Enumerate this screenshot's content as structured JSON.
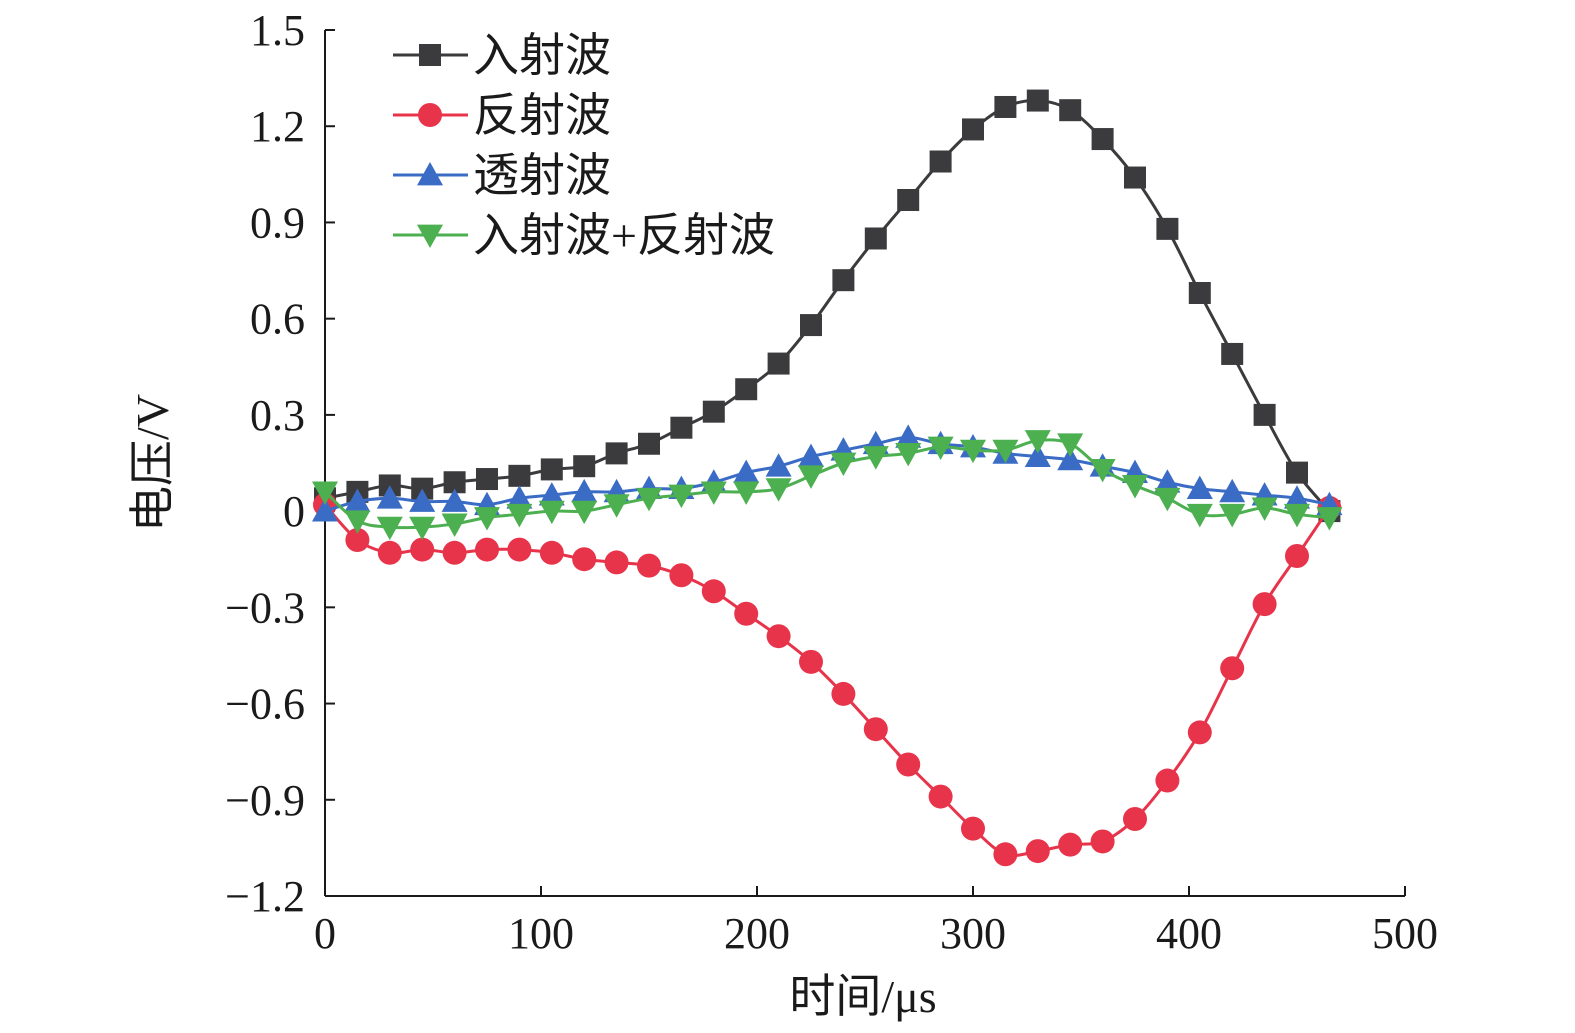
{
  "chart_data": {
    "type": "line",
    "xlabel": "时间/μs",
    "ylabel": "电压/V",
    "xlim": [
      0,
      500
    ],
    "ylim": [
      -1.2,
      1.5
    ],
    "xticks": [
      0,
      100,
      200,
      300,
      400,
      500
    ],
    "xtick_labels": [
      "0",
      "100",
      "200",
      "300",
      "400",
      "500"
    ],
    "yticks": [
      -1.2,
      -0.9,
      -0.6,
      -0.3,
      0,
      0.3,
      0.6,
      0.9,
      1.2,
      1.5
    ],
    "ytick_labels": [
      "−1.2",
      "−0.9",
      "−0.6",
      "−0.3",
      "0",
      "0.3",
      "0.6",
      "0.9",
      "1.2",
      "1.5"
    ],
    "grid": false,
    "legend_position": "top-left",
    "x": [
      0,
      15,
      30,
      45,
      60,
      75,
      90,
      105,
      120,
      135,
      150,
      165,
      180,
      195,
      210,
      225,
      240,
      255,
      270,
      285,
      300,
      315,
      330,
      345,
      360,
      375,
      390,
      405,
      420,
      435,
      450,
      465
    ],
    "series": [
      {
        "name": "入射波",
        "color": "#3b3b3d",
        "marker": "square",
        "values": [
          0.04,
          0.06,
          0.08,
          0.07,
          0.09,
          0.1,
          0.11,
          0.13,
          0.14,
          0.18,
          0.21,
          0.26,
          0.31,
          0.38,
          0.46,
          0.58,
          0.72,
          0.85,
          0.97,
          1.09,
          1.19,
          1.26,
          1.28,
          1.25,
          1.16,
          1.04,
          0.88,
          0.68,
          0.49,
          0.3,
          0.12,
          0.0
        ]
      },
      {
        "name": "反射波",
        "color": "#e8344a",
        "marker": "circle",
        "values": [
          0.02,
          -0.09,
          -0.13,
          -0.12,
          -0.13,
          -0.12,
          -0.12,
          -0.13,
          -0.15,
          -0.16,
          -0.17,
          -0.2,
          -0.25,
          -0.32,
          -0.39,
          -0.47,
          -0.57,
          -0.68,
          -0.79,
          -0.89,
          -0.99,
          -1.07,
          -1.06,
          -1.04,
          -1.03,
          -0.96,
          -0.84,
          -0.69,
          -0.49,
          -0.29,
          -0.14,
          0.01
        ]
      },
      {
        "name": "透射波",
        "color": "#3a6cc6",
        "marker": "triangle-up",
        "values": [
          0.0,
          0.03,
          0.04,
          0.03,
          0.03,
          0.02,
          0.04,
          0.05,
          0.06,
          0.06,
          0.07,
          0.07,
          0.09,
          0.12,
          0.14,
          0.17,
          0.19,
          0.21,
          0.23,
          0.21,
          0.2,
          0.18,
          0.17,
          0.16,
          0.14,
          0.12,
          0.09,
          0.07,
          0.06,
          0.05,
          0.04,
          0.02
        ]
      },
      {
        "name": "入射波+反射波",
        "color": "#4caf50",
        "marker": "triangle-down",
        "values": [
          0.06,
          -0.03,
          -0.05,
          -0.05,
          -0.04,
          -0.02,
          -0.01,
          0.0,
          0.0,
          0.02,
          0.04,
          0.05,
          0.06,
          0.06,
          0.07,
          0.11,
          0.15,
          0.17,
          0.18,
          0.2,
          0.19,
          0.19,
          0.22,
          0.21,
          0.13,
          0.08,
          0.04,
          -0.01,
          -0.01,
          0.01,
          -0.01,
          -0.02
        ]
      }
    ]
  }
}
